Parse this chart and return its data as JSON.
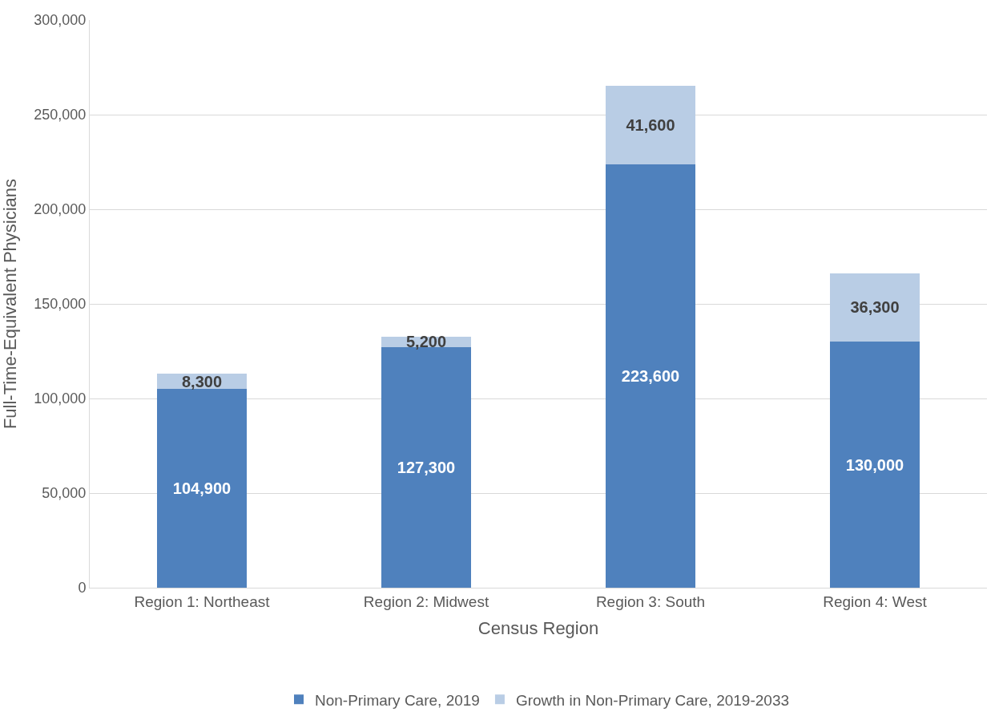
{
  "chart_data": {
    "type": "bar",
    "stacked": true,
    "xlabel": "Census Region",
    "ylabel": "Full-Time-Equivalent Physicians",
    "categories": [
      "Region 1: Northeast",
      "Region 2: Midwest",
      "Region 3: South",
      "Region 4: West"
    ],
    "series": [
      {
        "name": "Non-Primary Care, 2019",
        "color": "#4f81bd",
        "values": [
          104900,
          127300,
          223600,
          130000
        ],
        "value_labels": [
          "104,900",
          "127,300",
          "223,600",
          "130,000"
        ]
      },
      {
        "name": "Growth in Non-Primary Care, 2019-2033",
        "color": "#b9cde5",
        "values": [
          8300,
          5200,
          41600,
          36300
        ],
        "value_labels": [
          "8,300",
          "5,200",
          "41,600",
          "36,300"
        ]
      }
    ],
    "ylim": [
      0,
      300000
    ],
    "yticks": [
      {
        "value": 0,
        "label": "0"
      },
      {
        "value": 50000,
        "label": "50,000"
      },
      {
        "value": 100000,
        "label": "100,000"
      },
      {
        "value": 150000,
        "label": "150,000"
      },
      {
        "value": 200000,
        "label": "200,000"
      },
      {
        "value": 250000,
        "label": "250,000"
      },
      {
        "value": 300000,
        "label": "300,000"
      }
    ],
    "grid": "y",
    "legend": "bottom"
  }
}
